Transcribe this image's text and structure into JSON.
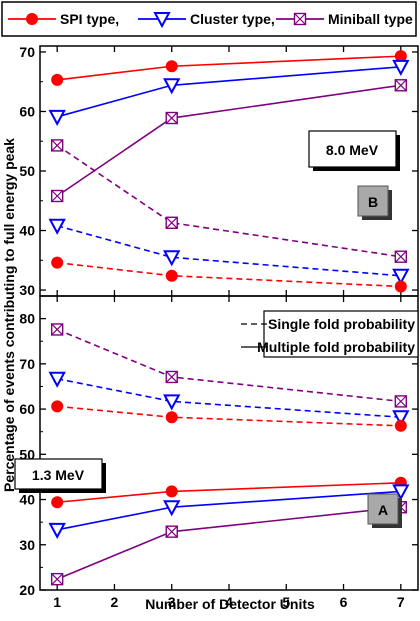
{
  "chart_data": {
    "type": "line",
    "xlabel": "Number of Detector Units",
    "ylabel": "Percentage of events contributing to full energy peak",
    "x_ticks": [
      1,
      2,
      3,
      4,
      5,
      6,
      7
    ],
    "xlim": [
      0.7,
      7.3
    ],
    "legend_top": {
      "placement": "top",
      "entries": [
        {
          "label": "SPI type,",
          "color": "#ff0000",
          "marker": "circle"
        },
        {
          "label": "Cluster type,",
          "color": "#0000ff",
          "marker": "triangle-down"
        },
        {
          "label": "Miniball type",
          "color": "#800080",
          "marker": "square-x"
        }
      ]
    },
    "legend_lines": {
      "placement": "top-right of bottom panel",
      "entries": [
        {
          "label": "Single fold probability",
          "style": "dashed"
        },
        {
          "label": "Multiple fold probability",
          "style": "solid"
        }
      ]
    },
    "panels": [
      {
        "id": "B",
        "energy_label": "8.0 MeV",
        "badge": "B",
        "ylim": [
          29,
          71
        ],
        "y_ticks": [
          30,
          40,
          50,
          60,
          70
        ],
        "series": [
          {
            "type": "SPI",
            "fold": "multiple",
            "style": "solid",
            "color": "#ff0000",
            "marker": "circle",
            "x": [
              1,
              3,
              7
            ],
            "y": [
              65.3,
              67.6,
              69.3
            ]
          },
          {
            "type": "Cluster",
            "fold": "multiple",
            "style": "solid",
            "color": "#0000ff",
            "marker": "triangle-down",
            "x": [
              1,
              3,
              7
            ],
            "y": [
              59.1,
              64.4,
              67.5
            ]
          },
          {
            "type": "Miniball",
            "fold": "multiple",
            "style": "solid",
            "color": "#800080",
            "marker": "square-x",
            "x": [
              1,
              3,
              7
            ],
            "y": [
              45.8,
              58.9,
              64.4
            ]
          },
          {
            "type": "Miniball",
            "fold": "single",
            "style": "dashed",
            "color": "#800080",
            "marker": "square-x",
            "x": [
              1,
              3,
              7
            ],
            "y": [
              54.3,
              41.3,
              35.6
            ]
          },
          {
            "type": "Cluster",
            "fold": "single",
            "style": "dashed",
            "color": "#0000ff",
            "marker": "triangle-down",
            "x": [
              1,
              3,
              7
            ],
            "y": [
              40.8,
              35.5,
              32.4
            ]
          },
          {
            "type": "SPI",
            "fold": "single",
            "style": "dashed",
            "color": "#ff0000",
            "marker": "circle",
            "x": [
              1,
              3,
              7
            ],
            "y": [
              34.6,
              32.4,
              30.6
            ]
          }
        ]
      },
      {
        "id": "A",
        "energy_label": "1.3 MeV",
        "badge": "A",
        "ylim": [
          20,
          85
        ],
        "y_ticks": [
          20,
          30,
          40,
          50,
          60,
          70,
          80
        ],
        "series": [
          {
            "type": "Miniball",
            "fold": "single",
            "style": "dashed",
            "color": "#800080",
            "marker": "square-x",
            "x": [
              1,
              3,
              7
            ],
            "y": [
              77.6,
              67.1,
              61.7
            ]
          },
          {
            "type": "Cluster",
            "fold": "single",
            "style": "dashed",
            "color": "#0000ff",
            "marker": "triangle-down",
            "x": [
              1,
              3,
              7
            ],
            "y": [
              66.7,
              61.7,
              58.2
            ]
          },
          {
            "type": "SPI",
            "fold": "single",
            "style": "dashed",
            "color": "#ff0000",
            "marker": "circle",
            "x": [
              1,
              3,
              7
            ],
            "y": [
              60.6,
              58.2,
              56.3
            ]
          },
          {
            "type": "SPI",
            "fold": "multiple",
            "style": "solid",
            "color": "#ff0000",
            "marker": "circle",
            "x": [
              1,
              3,
              7
            ],
            "y": [
              39.4,
              41.8,
              43.7
            ]
          },
          {
            "type": "Cluster",
            "fold": "multiple",
            "style": "solid",
            "color": "#0000ff",
            "marker": "triangle-down",
            "x": [
              1,
              3,
              7
            ],
            "y": [
              33.3,
              38.3,
              41.8
            ]
          },
          {
            "type": "Miniball",
            "fold": "multiple",
            "style": "solid",
            "color": "#800080",
            "marker": "square-x",
            "x": [
              1,
              3,
              7
            ],
            "y": [
              22.4,
              32.9,
              38.3
            ]
          }
        ]
      }
    ]
  }
}
